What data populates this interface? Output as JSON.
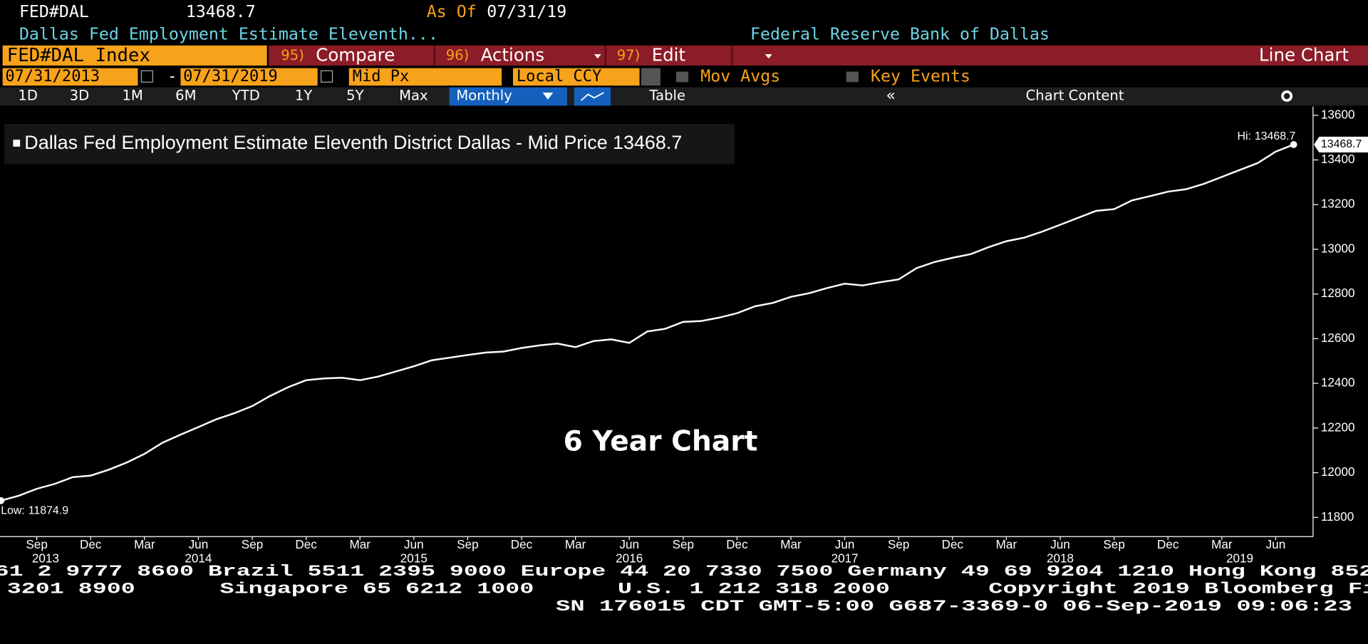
{
  "header": {
    "ticker": "FED#DAL",
    "as_of_label": "As Of",
    "as_of": "07/31/19",
    "description": "Dallas Fed Employment Estimate Eleventh...",
    "source": "Federal Reserve Bank of Dallas"
  },
  "toolbar": {
    "security": "FED#DAL Index",
    "menus": [
      {
        "number": "95)",
        "label": "Compare"
      },
      {
        "number": "96)",
        "label": "Actions"
      },
      {
        "number": "97)",
        "label": "Edit"
      }
    ],
    "view": "Line Chart"
  },
  "settings": {
    "start": "07/31/2013",
    "separator": "-",
    "end": "07/31/2019",
    "field": "Mid Px",
    "currency": "Local CCY",
    "mov_avgs": "Mov Avgs",
    "key_events": "Key Events"
  },
  "periods": [
    "1D",
    "3D",
    "1M",
    "6M",
    "YTD",
    "1Y",
    "5Y",
    "Max"
  ],
  "frequency": "Monthly",
  "table_button": "Table",
  "chart_content": "Chart Content",
  "footer": {
    "line1": "61 2 9777 8600 Brazil 5511 2395 9000 Europe 44 20 7330 7500 Germany 49 69 9204 1210 Hong Kong 852",
    "line2": [
      "3201 8900",
      "Singapore 65 6212 1000",
      "U.S. 1 212 318 2000",
      "Copyright 2019 Bloomberg Fi"
    ],
    "line3": "SN 176015 CDT  GMT-5:00 G687-3369-0 06-Sep-2019 09:06:23"
  },
  "chart_data": {
    "type": "line",
    "annotation": "6 Year Chart",
    "hi_label": "Hi:",
    "low_label": "Low:",
    "x": [
      "2013-07",
      "2013-08",
      "2013-09",
      "2013-10",
      "2013-11",
      "2013-12",
      "2014-01",
      "2014-02",
      "2014-03",
      "2014-04",
      "2014-05",
      "2014-06",
      "2014-07",
      "2014-08",
      "2014-09",
      "2014-10",
      "2014-11",
      "2014-12",
      "2015-01",
      "2015-02",
      "2015-03",
      "2015-04",
      "2015-05",
      "2015-06",
      "2015-07",
      "2015-08",
      "2015-09",
      "2015-10",
      "2015-11",
      "2015-12",
      "2016-01",
      "2016-02",
      "2016-03",
      "2016-04",
      "2016-05",
      "2016-06",
      "2016-07",
      "2016-08",
      "2016-09",
      "2016-10",
      "2016-11",
      "2016-12",
      "2017-01",
      "2017-02",
      "2017-03",
      "2017-04",
      "2017-05",
      "2017-06",
      "2017-07",
      "2017-08",
      "2017-09",
      "2017-10",
      "2017-11",
      "2017-12",
      "2018-01",
      "2018-02",
      "2018-03",
      "2018-04",
      "2018-05",
      "2018-06",
      "2018-07",
      "2018-08",
      "2018-09",
      "2018-10",
      "2018-11",
      "2018-12",
      "2019-01",
      "2019-02",
      "2019-03",
      "2019-04",
      "2019-05",
      "2019-06",
      "2019-07"
    ],
    "series": [
      {
        "name": "Dallas Fed Employment Estimate Eleventh District Dallas - Mid Price",
        "color": "#ffffff",
        "values": [
          11874.9,
          11897,
          11928,
          11950,
          11980,
          11987,
          12013,
          12045,
          12084,
          12134,
          12170,
          12204,
          12239,
          12266,
          12298,
          12344,
          12383,
          12414,
          12422,
          12425,
          12414,
          12430,
          12453,
          12476,
          12503,
          12515,
          12527,
          12538,
          12542,
          12558,
          12570,
          12578,
          12562,
          12589,
          12597,
          12581,
          12632,
          12644,
          12675,
          12679,
          12694,
          12714,
          12745,
          12760,
          12787,
          12803,
          12826,
          12846,
          12838,
          12853,
          12865,
          12916,
          12943,
          12962,
          12978,
          13009,
          13036,
          13052,
          13079,
          13110,
          13141,
          13172,
          13180,
          13219,
          13238,
          13258,
          13269,
          13293,
          13324,
          13355,
          13386,
          13437,
          13468.7
        ]
      }
    ],
    "ylim": [
      11714,
      13639
    ],
    "yticks": [
      11800,
      12000,
      12200,
      12400,
      12600,
      12800,
      13000,
      13200,
      13400,
      13600
    ],
    "xticks": [
      {
        "value": "2013-09",
        "label": "Sep"
      },
      {
        "value": "2013-12",
        "label": "Dec"
      },
      {
        "value": "2014-03",
        "label": "Mar"
      },
      {
        "value": "2014-06",
        "label": "Jun"
      },
      {
        "value": "2014-09",
        "label": "Sep"
      },
      {
        "value": "2014-12",
        "label": "Dec"
      },
      {
        "value": "2015-03",
        "label": "Mar"
      },
      {
        "value": "2015-06",
        "label": "Jun"
      },
      {
        "value": "2015-09",
        "label": "Sep"
      },
      {
        "value": "2015-12",
        "label": "Dec"
      },
      {
        "value": "2016-03",
        "label": "Mar"
      },
      {
        "value": "2016-06",
        "label": "Jun"
      },
      {
        "value": "2016-09",
        "label": "Sep"
      },
      {
        "value": "2016-12",
        "label": "Dec"
      },
      {
        "value": "2017-03",
        "label": "Mar"
      },
      {
        "value": "2017-06",
        "label": "Jun"
      },
      {
        "value": "2017-09",
        "label": "Sep"
      },
      {
        "value": "2017-12",
        "label": "Dec"
      },
      {
        "value": "2018-03",
        "label": "Mar"
      },
      {
        "value": "2018-06",
        "label": "Jun"
      },
      {
        "value": "2018-09",
        "label": "Sep"
      },
      {
        "value": "2018-12",
        "label": "Dec"
      },
      {
        "value": "2019-03",
        "label": "Mar"
      },
      {
        "value": "2019-06",
        "label": "Jun"
      }
    ],
    "xyears": [
      {
        "value": "2013-09",
        "label": "2013"
      },
      {
        "value": "2014-06",
        "label": "2014"
      },
      {
        "value": "2015-06",
        "label": "2015"
      },
      {
        "value": "2016-06",
        "label": "2016"
      },
      {
        "value": "2017-06",
        "label": "2017"
      },
      {
        "value": "2018-06",
        "label": "2018"
      },
      {
        "value": "2019-04",
        "label": "2019"
      }
    ],
    "legend": "top-left",
    "grid": false
  }
}
